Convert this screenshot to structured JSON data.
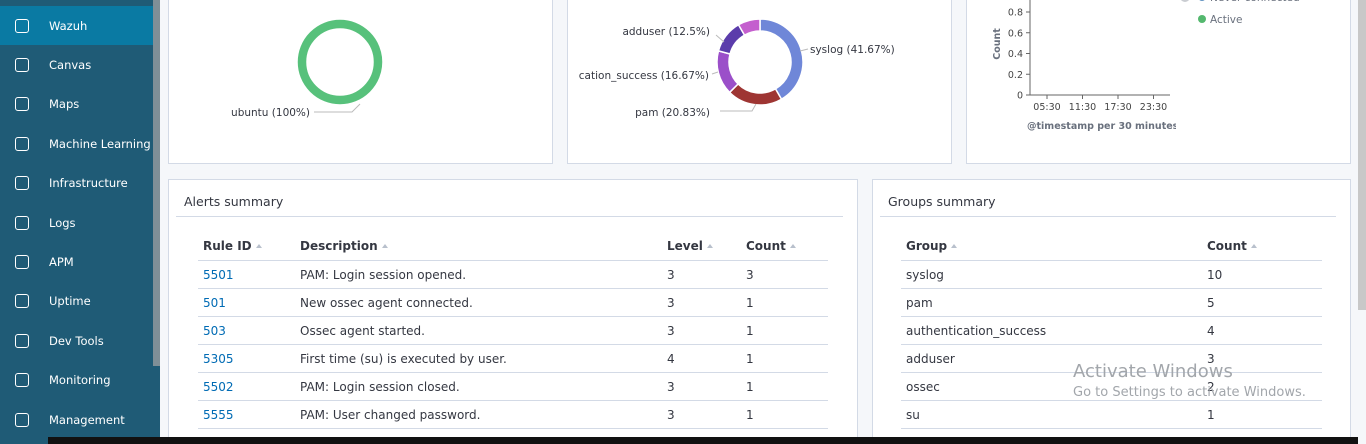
{
  "sidebar": {
    "items": [
      "Wazuh",
      "Canvas",
      "Maps",
      "Machine Learning",
      "Infrastructure",
      "Logs",
      "APM",
      "Uptime",
      "Dev Tools",
      "Monitoring",
      "Management"
    ]
  },
  "chart_data": [
    {
      "type": "pie",
      "values": [
        100
      ],
      "value_labels": [
        "ubuntu (100%)"
      ],
      "colors": [
        "#57c17b"
      ]
    },
    {
      "type": "pie",
      "values": [
        41.67,
        20.83,
        16.67,
        12.5,
        8.33
      ],
      "value_labels": [
        "syslog (41.67%)",
        "pam (20.83%)",
        "cation_success (16.67%)",
        "adduser (12.5%)",
        null
      ],
      "colors": [
        "#6f87d8",
        "#9e3533",
        "#9b4fc9",
        "#5b3cab",
        "#c45fce"
      ]
    },
    {
      "type": "line",
      "categories": [
        "05:30",
        "11:30",
        "17:30",
        "23:30"
      ],
      "y_label": "Count",
      "x_label": "@timestamp per 30 minutes",
      "ylim": [
        0,
        1
      ],
      "yticks": [
        0,
        0.2,
        0.4,
        0.6,
        0.8
      ],
      "series": [
        {
          "name": "Never connected",
          "color": "#6092c0",
          "values": [
            null,
            null,
            null,
            null
          ]
        },
        {
          "name": "Active",
          "color": "#54b86e",
          "values": [
            null,
            null,
            null,
            null
          ]
        }
      ]
    }
  ],
  "alerts_summary": {
    "title": "Alerts summary",
    "columns": [
      "Rule ID",
      "Description",
      "Level",
      "Count"
    ],
    "rows": [
      [
        "5501",
        "PAM: Login session opened.",
        3,
        3
      ],
      [
        "501",
        "New ossec agent connected.",
        3,
        1
      ],
      [
        "503",
        "Ossec agent started.",
        3,
        1
      ],
      [
        "5305",
        "First time (su) is executed by user.",
        4,
        1
      ],
      [
        "5502",
        "PAM: Login session closed.",
        3,
        1
      ],
      [
        "5555",
        "PAM: User changed password.",
        3,
        1
      ]
    ]
  },
  "groups_summary": {
    "title": "Groups summary",
    "columns": [
      "Group",
      "Count"
    ],
    "rows": [
      [
        "syslog",
        10
      ],
      [
        "pam",
        5
      ],
      [
        "authentication_success",
        4
      ],
      [
        "adduser",
        3
      ],
      [
        "ossec",
        2
      ],
      [
        "su",
        1
      ]
    ]
  },
  "watermark": {
    "title": "Activate Windows",
    "subtitle": "Go to Settings to activate Windows."
  }
}
